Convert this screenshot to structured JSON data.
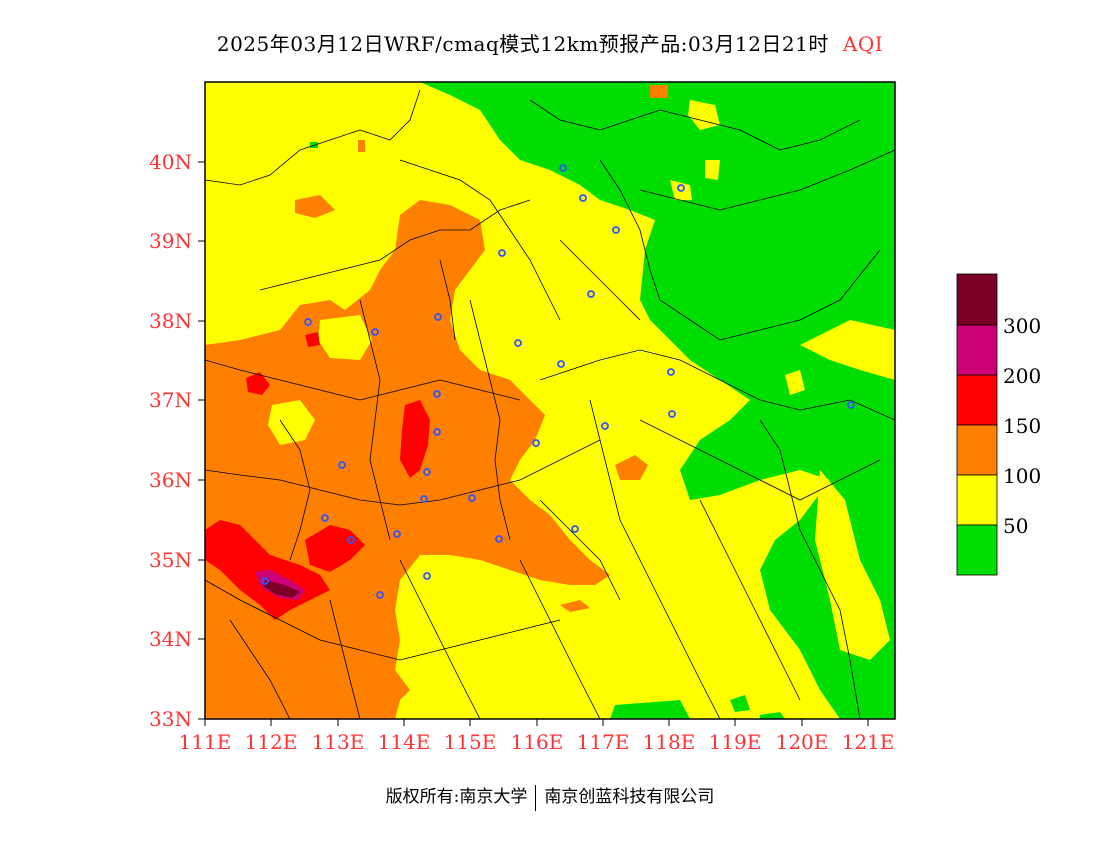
{
  "title": {
    "main": "2025年03月12日WRF/cmaq模式12km预报产品:03月12日21时",
    "aqi": "AQI"
  },
  "axes": {
    "latitude_labels": [
      "40N",
      "39N",
      "38N",
      "37N",
      "36N",
      "35N",
      "34N",
      "33N"
    ],
    "longitude_labels": [
      "111E",
      "112E",
      "113E",
      "114E",
      "115E",
      "116E",
      "117E",
      "118E",
      "119E",
      "120E",
      "121E"
    ]
  },
  "legend": {
    "labels": [
      "300",
      "200",
      "150",
      "100",
      "50"
    ],
    "colors": [
      "#7a0025",
      "#cc0077",
      "#ff0000",
      "#ff8000",
      "#ffff00",
      "#00dd00"
    ]
  },
  "footer": {
    "left": "版权所有:南京大学",
    "right": "南京创蓝科技有限公司"
  },
  "colors": {
    "good": "#00dd00",
    "moderate": "#ffff00",
    "light": "#ff8000",
    "medium": "#ff0000",
    "heavy": "#cc0077",
    "severe": "#7a0025",
    "city_marker": "#3355ff",
    "axis_text": "#ff3333"
  }
}
